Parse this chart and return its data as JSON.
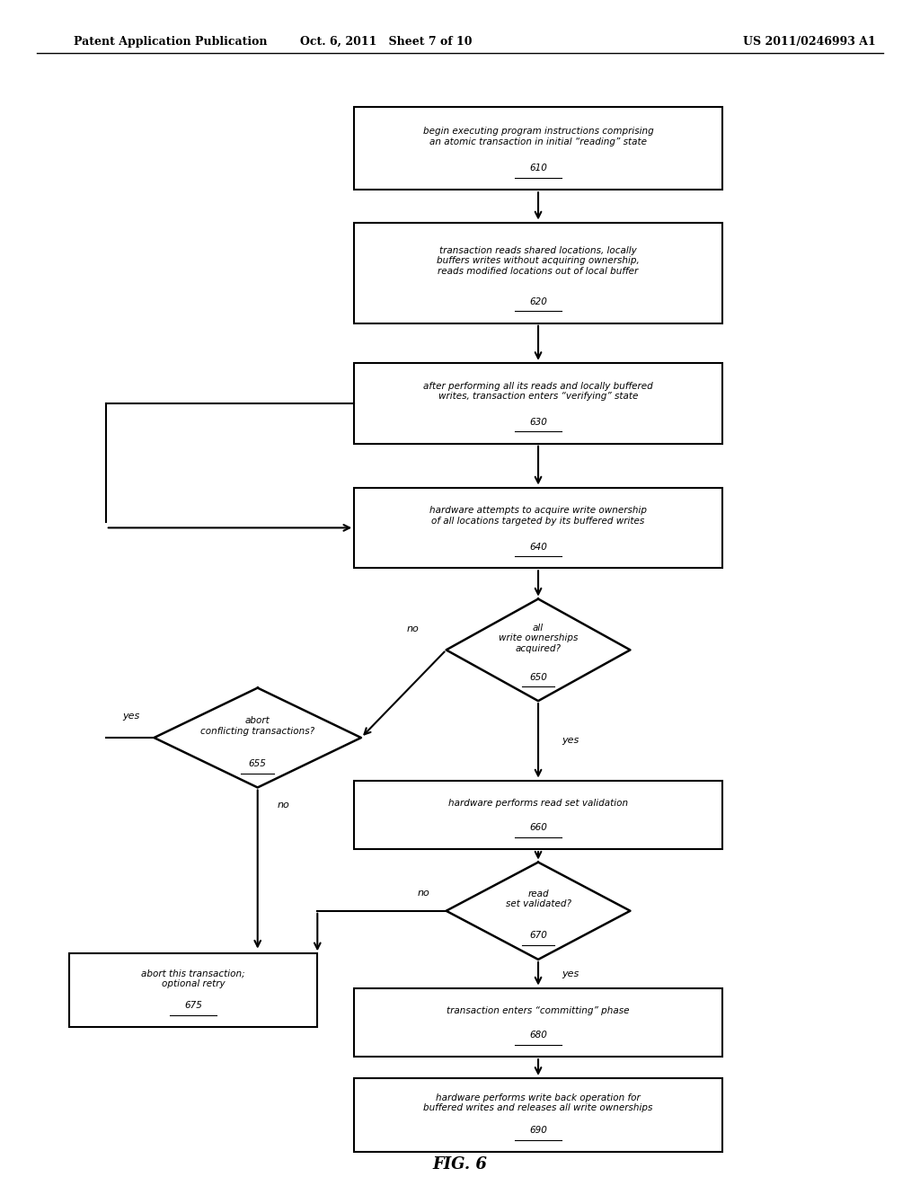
{
  "bg_color": "#ffffff",
  "header_left": "Patent Application Publication",
  "header_mid": "Oct. 6, 2011   Sheet 7 of 10",
  "header_right": "US 2011/0246993 A1",
  "figure_label": "FIG. 6"
}
